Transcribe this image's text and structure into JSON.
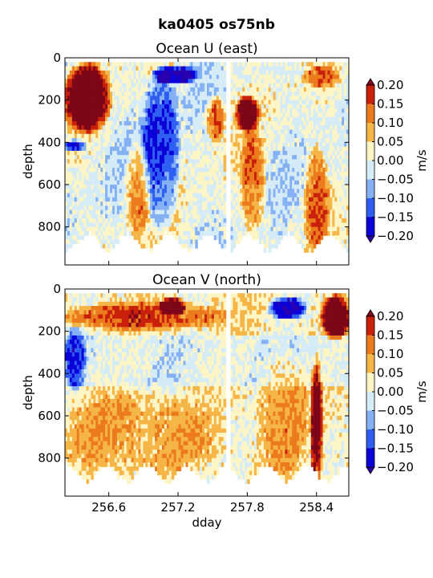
{
  "title": "ka0405 os75nb",
  "colorbar": {
    "label": "m/s",
    "ticks": [
      "0.20",
      "0.15",
      "0.10",
      "0.05",
      "0.00",
      "−0.05",
      "−0.10",
      "−0.15",
      "−0.20"
    ],
    "levels": [
      -0.2,
      -0.15,
      -0.1,
      -0.05,
      0.0,
      0.05,
      0.1,
      0.15,
      0.2
    ],
    "colors": [
      "#0c00d9",
      "#2f5ef2",
      "#85b1f4",
      "#d5ecf7",
      "#fdf5c6",
      "#f5b547",
      "#eb7b1c",
      "#c9200c"
    ],
    "under_color": "#2a00ae",
    "over_color": "#7d0618"
  },
  "chart_data": [
    {
      "type": "heatmap",
      "title": "Ocean U (east)",
      "xlabel": "",
      "ylabel": "depth",
      "xlim": [
        256.22,
        258.68
      ],
      "ylim": [
        980,
        0
      ],
      "xticks": [
        256.6,
        257.2,
        257.8,
        258.4
      ],
      "yticks": [
        0,
        200,
        400,
        600,
        800
      ],
      "y_tick_labels": [
        "0",
        "200",
        "400",
        "600",
        "800"
      ],
      "data_gap_dday": [
        257.62,
        257.66
      ],
      "bottom_depth_approx": 850,
      "approx_features": [
        {
          "dday": [
            256.22,
            256.6
          ],
          "depth": [
            30,
            330
          ],
          "value": 0.25
        },
        {
          "dday": [
            256.22,
            256.4
          ],
          "depth": [
            380,
            430
          ],
          "value": -0.2
        },
        {
          "dday": [
            256.75,
            256.95
          ],
          "depth": [
            420,
            830
          ],
          "value": 0.12
        },
        {
          "dday": [
            256.9,
            257.2
          ],
          "depth": [
            90,
            780
          ],
          "value": -0.15
        },
        {
          "dday": [
            257.0,
            257.35
          ],
          "depth": [
            30,
            110
          ],
          "value": -0.22
        },
        {
          "dday": [
            257.45,
            257.6
          ],
          "depth": [
            180,
            380
          ],
          "value": 0.15
        },
        {
          "dday": [
            257.7,
            257.9
          ],
          "depth": [
            180,
            330
          ],
          "value": 0.22
        },
        {
          "dday": [
            257.75,
            257.95
          ],
          "depth": [
            350,
            800
          ],
          "value": 0.12
        },
        {
          "dday": [
            258.3,
            258.6
          ],
          "depth": [
            30,
            130
          ],
          "value": 0.1
        },
        {
          "dday": [
            258.3,
            258.5
          ],
          "depth": [
            430,
            900
          ],
          "value": 0.13
        }
      ]
    },
    {
      "type": "heatmap",
      "title": "Ocean V (north)",
      "xlabel": "dday",
      "ylabel": "depth",
      "xlim": [
        256.22,
        258.68
      ],
      "ylim": [
        980,
        0
      ],
      "xticks": [
        256.6,
        257.2,
        257.8,
        258.4
      ],
      "x_tick_labels": [
        "256.6",
        "257.2",
        "257.8",
        "258.4"
      ],
      "yticks": [
        0,
        200,
        400,
        600,
        800
      ],
      "y_tick_labels": [
        "0",
        "200",
        "400",
        "600",
        "800"
      ],
      "data_gap_dday": [
        257.62,
        257.66
      ],
      "bottom_depth_approx": 850,
      "approx_features": [
        {
          "dday": [
            256.22,
            257.6
          ],
          "depth": [
            60,
            180
          ],
          "value": 0.13
        },
        {
          "dday": [
            256.22,
            256.4
          ],
          "depth": [
            180,
            460
          ],
          "value": -0.14
        },
        {
          "dday": [
            257.05,
            257.25
          ],
          "depth": [
            30,
            110
          ],
          "value": 0.22
        },
        {
          "dday": [
            258.0,
            258.3
          ],
          "depth": [
            30,
            130
          ],
          "value": -0.22
        },
        {
          "dday": [
            258.45,
            258.68
          ],
          "depth": [
            30,
            220
          ],
          "value": 0.25
        },
        {
          "dday": [
            258.35,
            258.45
          ],
          "depth": [
            350,
            900
          ],
          "value": 0.2
        },
        {
          "dday": [
            256.22,
            257.5
          ],
          "depth": [
            500,
            850
          ],
          "value": 0.06
        },
        {
          "dday": [
            257.9,
            258.3
          ],
          "depth": [
            300,
            850
          ],
          "value": 0.07
        }
      ]
    }
  ]
}
